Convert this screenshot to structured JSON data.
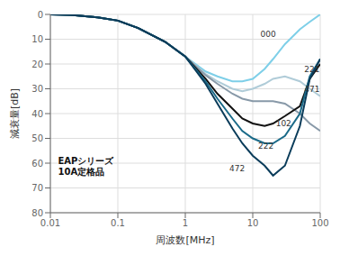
{
  "chart_data": {
    "type": "line",
    "xlabel": "周波数[MHz]",
    "ylabel": "減衰量[dB]",
    "log": "x",
    "grid": true,
    "xlim": [
      0.01,
      100
    ],
    "ylim": [
      80,
      0
    ],
    "xticks": [
      0.01,
      0.1,
      1,
      10,
      100
    ],
    "yticks": [
      0,
      10,
      20,
      30,
      40,
      50,
      60,
      70,
      80
    ],
    "x": [
      0.01,
      0.02,
      0.05,
      0.1,
      0.2,
      0.5,
      1.0,
      2.0,
      3.0,
      5.0,
      7.0,
      10.0,
      15.0,
      20.0,
      30.0,
      50.0,
      70.0,
      100.0
    ],
    "series": [
      {
        "color": "#7ecfe8",
        "values": [
          0,
          0.2,
          1.2,
          2.5,
          5.5,
          11,
          17,
          23,
          25,
          27,
          27,
          26,
          22,
          18,
          12,
          6,
          3,
          0
        ]
      },
      {
        "color": "#b0ccd8",
        "values": [
          0,
          0.2,
          1.2,
          2.5,
          5.5,
          11,
          17,
          24,
          27,
          30,
          31,
          30,
          28,
          26,
          25,
          27,
          30,
          33
        ]
      },
      {
        "color": "#8899a8",
        "values": [
          0,
          0.2,
          1.2,
          2.5,
          5.5,
          11,
          17,
          24.5,
          28,
          32,
          34,
          35,
          35,
          35,
          36,
          40,
          44,
          47
        ]
      },
      {
        "color": "#111111",
        "values": [
          0,
          0.2,
          1.2,
          2.5,
          5.5,
          11,
          17,
          26,
          32,
          38,
          42,
          44,
          45,
          44,
          41,
          37,
          26,
          20
        ]
      },
      {
        "color": "#1a6a88",
        "values": [
          0,
          0.2,
          1.2,
          2.5,
          5.5,
          11,
          17,
          27,
          34,
          42,
          47,
          50,
          52,
          52,
          49,
          40,
          25,
          18
        ]
      },
      {
        "color": "#0a3c5a",
        "values": [
          0,
          0.2,
          1.2,
          2.5,
          5.5,
          11,
          17,
          28,
          36,
          46,
          52,
          57,
          61,
          65,
          61,
          45,
          26,
          18
        ]
      }
    ],
    "annotations": [
      {
        "text": "000",
        "x": 13,
        "y": 8
      },
      {
        "text": "221",
        "x": 58,
        "y": 22
      },
      {
        "text": "471",
        "x": 58,
        "y": 30
      },
      {
        "text": "102",
        "x": 22,
        "y": 44
      },
      {
        "text": "222",
        "x": 12,
        "y": 53
      },
      {
        "text": "472",
        "x": 4.5,
        "y": 62
      },
      {
        "text": "EAPシリーズ\n10A定格品",
        "x": 0.013,
        "y": 57
      }
    ]
  }
}
